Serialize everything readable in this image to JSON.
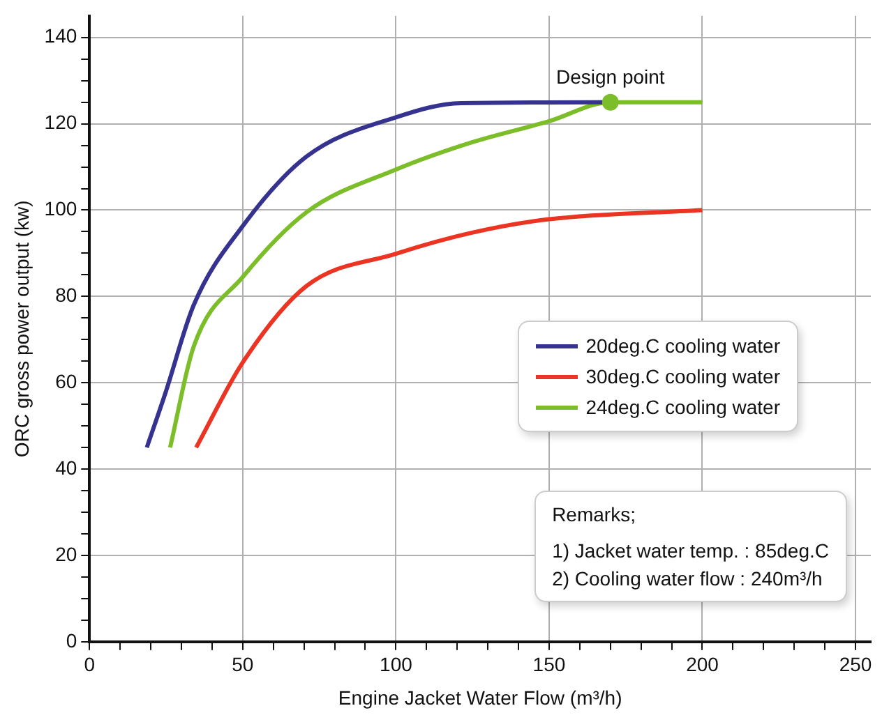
{
  "chart_data": {
    "type": "line",
    "xlabel": "Engine Jacket Water Flow (m³/h)",
    "ylabel": "ORC gross power output (kw)",
    "xlim": [
      0,
      255
    ],
    "ylim": [
      0,
      145
    ],
    "xticks": [
      0,
      {
        "value": 10,
        "label": null
      },
      {
        "value": 20,
        "label": null
      },
      {
        "value": 30,
        "label": null
      },
      {
        "value": 40,
        "label": null
      },
      50,
      {
        "value": 60,
        "label": null
      },
      {
        "value": 70,
        "label": null
      },
      {
        "value": 80,
        "label": null
      },
      {
        "value": 90,
        "label": null
      },
      100,
      {
        "value": 110,
        "label": null
      },
      {
        "value": 120,
        "label": null
      },
      {
        "value": 130,
        "label": null
      },
      {
        "value": 140,
        "label": null
      },
      150,
      {
        "value": 160,
        "label": null
      },
      {
        "value": 170,
        "label": null
      },
      {
        "value": 180,
        "label": null
      },
      {
        "value": 190,
        "label": null
      },
      200,
      {
        "value": 210,
        "label": null
      },
      {
        "value": 220,
        "label": null
      },
      {
        "value": 230,
        "label": null
      },
      {
        "value": 240,
        "label": null
      },
      250
    ],
    "yticks": [
      0,
      {
        "value": 5,
        "label": null
      },
      {
        "value": 10,
        "label": null
      },
      {
        "value": 15,
        "label": null
      },
      20,
      {
        "value": 25,
        "label": null
      },
      {
        "value": 30,
        "label": null
      },
      {
        "value": 35,
        "label": null
      },
      40,
      {
        "value": 45,
        "label": null
      },
      {
        "value": 50,
        "label": null
      },
      {
        "value": 55,
        "label": null
      },
      60,
      {
        "value": 65,
        "label": null
      },
      {
        "value": 70,
        "label": null
      },
      {
        "value": 75,
        "label": null
      },
      80,
      {
        "value": 85,
        "label": null
      },
      {
        "value": 90,
        "label": null
      },
      {
        "value": 95,
        "label": null
      },
      100,
      {
        "value": 105,
        "label": null
      },
      {
        "value": 110,
        "label": null
      },
      {
        "value": 115,
        "label": null
      },
      120,
      {
        "value": 125,
        "label": null
      },
      {
        "value": 130,
        "label": null
      },
      {
        "value": 135,
        "label": null
      },
      140
    ],
    "grid": true,
    "legend": "right",
    "marker": "none",
    "line_style": "solid",
    "series": [
      {
        "name": "20deg.C cooling water",
        "color": "#35338f",
        "x": [
          18.7,
          24.8,
          34,
          50,
          70.8,
          100,
          121.3,
          170
        ],
        "values": [
          45,
          57.7,
          78,
          96.3,
          112.4,
          121.5,
          124.8,
          125
        ]
      },
      {
        "name": "30deg.C cooling water",
        "color": "#ec3423",
        "x": [
          34.8,
          50,
          70.8,
          100,
          124.3,
          150,
          200
        ],
        "values": [
          45,
          64.7,
          82.4,
          89.9,
          94.7,
          97.9,
          100
        ]
      },
      {
        "name": "24deg.C cooling water",
        "color": "#7cbd2a",
        "x": [
          26.3,
          34,
          50,
          70.8,
          100,
          124.3,
          150,
          170,
          200
        ],
        "values": [
          45,
          68.4,
          84.5,
          99.5,
          109.4,
          115.6,
          120.6,
          125,
          125
        ]
      },
      {
        "type": "scatter",
        "color": "#7cbd2a",
        "marker": "circle",
        "x": [
          170
        ],
        "values": [
          125
        ]
      }
    ],
    "annotations": [
      {
        "text": "Design point",
        "x": 170,
        "y": 125
      },
      "Remarks;",
      "1) Jacket water temp. : 85deg.C",
      "2) Cooling water flow : 240m³/h"
    ]
  }
}
